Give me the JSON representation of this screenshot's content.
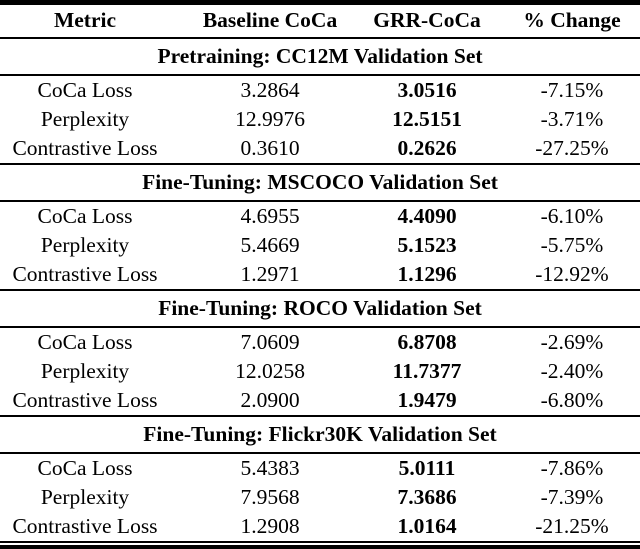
{
  "table": {
    "columns": [
      "Metric",
      "Baseline CoCa",
      "GRR-CoCa",
      "% Change"
    ],
    "sections": [
      {
        "title": "Pretraining: CC12M Validation Set",
        "rows": [
          {
            "metric": "CoCa Loss",
            "baseline": "3.2864",
            "grr": "3.0516",
            "change": "-7.15%"
          },
          {
            "metric": "Perplexity",
            "baseline": "12.9976",
            "grr": "12.5151",
            "change": "-3.71%"
          },
          {
            "metric": "Contrastive Loss",
            "baseline": "0.3610",
            "grr": "0.2626",
            "change": "-27.25%"
          }
        ]
      },
      {
        "title": "Fine-Tuning: MSCOCO Validation Set",
        "rows": [
          {
            "metric": "CoCa Loss",
            "baseline": "4.6955",
            "grr": "4.4090",
            "change": "-6.10%"
          },
          {
            "metric": "Perplexity",
            "baseline": "5.4669",
            "grr": "5.1523",
            "change": "-5.75%"
          },
          {
            "metric": "Contrastive Loss",
            "baseline": "1.2971",
            "grr": "1.1296",
            "change": "-12.92%"
          }
        ]
      },
      {
        "title": "Fine-Tuning: ROCO Validation Set",
        "rows": [
          {
            "metric": "CoCa Loss",
            "baseline": "7.0609",
            "grr": "6.8708",
            "change": "-2.69%"
          },
          {
            "metric": "Perplexity",
            "baseline": "12.0258",
            "grr": "11.7377",
            "change": "-2.40%"
          },
          {
            "metric": "Contrastive Loss",
            "baseline": "2.0900",
            "grr": "1.9479",
            "change": "-6.80%"
          }
        ]
      },
      {
        "title": "Fine-Tuning: Flickr30K Validation Set",
        "rows": [
          {
            "metric": "CoCa Loss",
            "baseline": "5.4383",
            "grr": "5.0111",
            "change": "-7.86%"
          },
          {
            "metric": "Perplexity",
            "baseline": "7.9568",
            "grr": "7.3686",
            "change": "-7.39%"
          },
          {
            "metric": "Contrastive Loss",
            "baseline": "1.2908",
            "grr": "1.0164",
            "change": "-21.25%"
          }
        ]
      }
    ]
  },
  "colors": {
    "text": "#000000",
    "background": "#ffffff",
    "rule": "#000000"
  }
}
